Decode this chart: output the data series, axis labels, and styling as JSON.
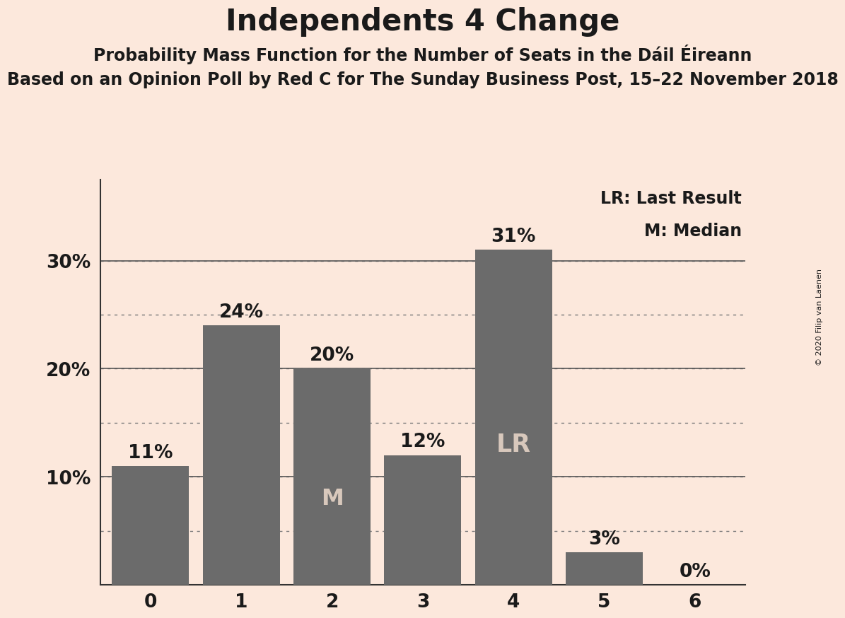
{
  "title": "Independents 4 Change",
  "subtitle1": "Probability Mass Function for the Number of Seats in the Dáil Éireann",
  "subtitle2": "Based on an Opinion Poll by Red C for The Sunday Business Post, 15–22 November 2018",
  "copyright": "© 2020 Filip van Laenen",
  "categories": [
    0,
    1,
    2,
    3,
    4,
    5,
    6
  ],
  "values": [
    0.11,
    0.24,
    0.2,
    0.12,
    0.31,
    0.03,
    0.0
  ],
  "bar_color": "#6b6b6b",
  "background_color": "#fce8dc",
  "bar_labels": [
    "11%",
    "24%",
    "20%",
    "12%",
    "31%",
    "3%",
    "0%"
  ],
  "median_bar": 2,
  "last_result_bar": 4,
  "yticks": [
    0.1,
    0.2,
    0.3
  ],
  "ytick_labels": [
    "10%",
    "20%",
    "30%"
  ],
  "dotted_lines": [
    0.05,
    0.1,
    0.15,
    0.2,
    0.25,
    0.3
  ],
  "solid_lines": [
    0.1,
    0.2,
    0.3
  ],
  "legend_lr": "LR: Last Result",
  "legend_m": "M: Median",
  "title_fontsize": 30,
  "subtitle1_fontsize": 17,
  "subtitle2_fontsize": 17,
  "bar_label_fontsize": 19,
  "axis_tick_fontsize": 19,
  "legend_fontsize": 17,
  "ytick_fontsize": 19,
  "inner_label_color": "#d8c8bc",
  "outer_label_color": "#1a1a1a",
  "grid_dotted_color": "#777777",
  "grid_solid_color": "#555555",
  "axis_color": "#333333",
  "copyright_fontsize": 8
}
